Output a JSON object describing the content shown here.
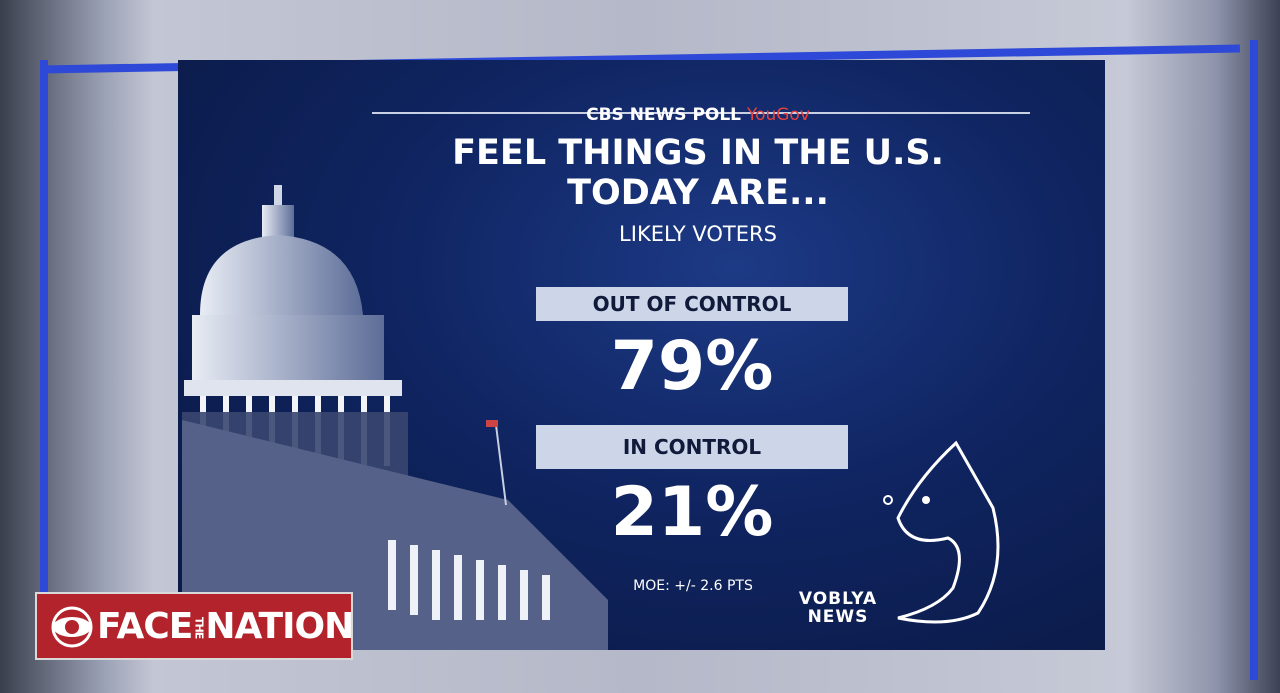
{
  "chart_data": {
    "type": "stat",
    "source": "CBS NEWS POLL",
    "source_partner": "YouGov",
    "title": "FEEL THINGS IN THE U.S. TODAY ARE...",
    "subtitle": "LIKELY VOTERS",
    "categories": [
      "OUT OF CONTROL",
      "IN CONTROL"
    ],
    "values": [
      79,
      21
    ],
    "value_labels": [
      "79%",
      "21%"
    ],
    "color": "#cdd6e8",
    "note": "MOE: +/- 2.6 PTS"
  },
  "show_logo": {
    "first": "FACE",
    "middle": "THE",
    "last": "NATION"
  },
  "watermark": {
    "line1": "VOBLYA",
    "line2": "NEWS"
  }
}
